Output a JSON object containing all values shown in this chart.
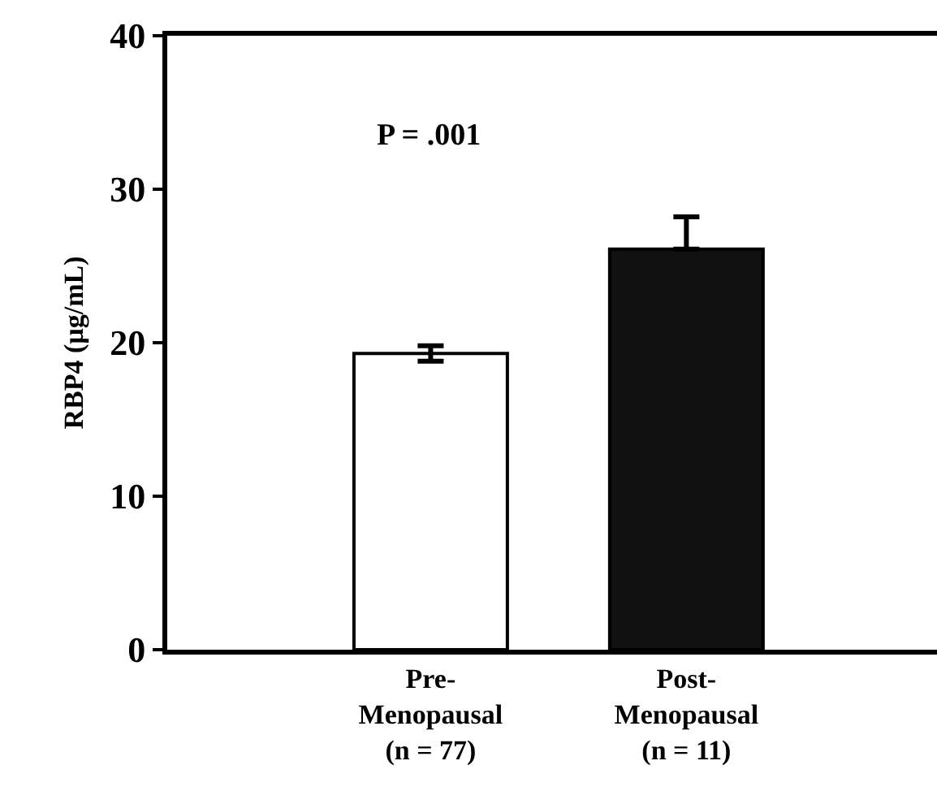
{
  "chart_data": {
    "type": "bar",
    "ylabel": "RBP4 (µg/mL)",
    "categories": [
      "Pre-\nMenopausal\n(n = 77)",
      "Post-\nMenopausal\n(n = 11)"
    ],
    "values": [
      19.3,
      26.1
    ],
    "errors": [
      [
        18.8,
        19.8
      ],
      [
        26.1,
        28.2
      ]
    ],
    "colors": [
      "#ffffff",
      "#111111"
    ],
    "ylim": [
      0,
      40
    ],
    "yticks": [
      0,
      10,
      20,
      30,
      40
    ],
    "legend": false,
    "annotations": [
      "P = .001"
    ]
  }
}
